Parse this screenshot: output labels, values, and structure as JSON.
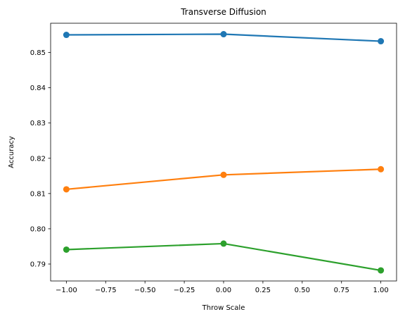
{
  "chart_data": {
    "type": "line",
    "title": "Transverse Diffusion",
    "xlabel": "Throw Scale",
    "ylabel": "Accuracy",
    "x": [
      -1.0,
      0.0,
      1.0
    ],
    "xlim": [
      -1.1,
      1.1
    ],
    "ylim": [
      0.7852,
      0.8583
    ],
    "xticks": [
      -1.0,
      -0.75,
      -0.5,
      -0.25,
      0.0,
      0.25,
      0.5,
      0.75,
      1.0
    ],
    "xtick_labels": [
      "−1.00",
      "−0.75",
      "−0.50",
      "−0.25",
      "0.00",
      "0.25",
      "0.50",
      "0.75",
      "1.00"
    ],
    "yticks": [
      0.79,
      0.8,
      0.81,
      0.82,
      0.83,
      0.84,
      0.85
    ],
    "ytick_labels": [
      "0.79",
      "0.80",
      "0.81",
      "0.82",
      "0.83",
      "0.84",
      "0.85"
    ],
    "grid": false,
    "series": [
      {
        "values": [
          0.855,
          0.8552,
          0.8532
        ],
        "color": "#1f77b4"
      },
      {
        "values": [
          0.8112,
          0.8153,
          0.8169
        ],
        "color": "#ff7f0e"
      },
      {
        "values": [
          0.7941,
          0.7958,
          0.7882
        ],
        "color": "#2ca02c"
      }
    ]
  }
}
